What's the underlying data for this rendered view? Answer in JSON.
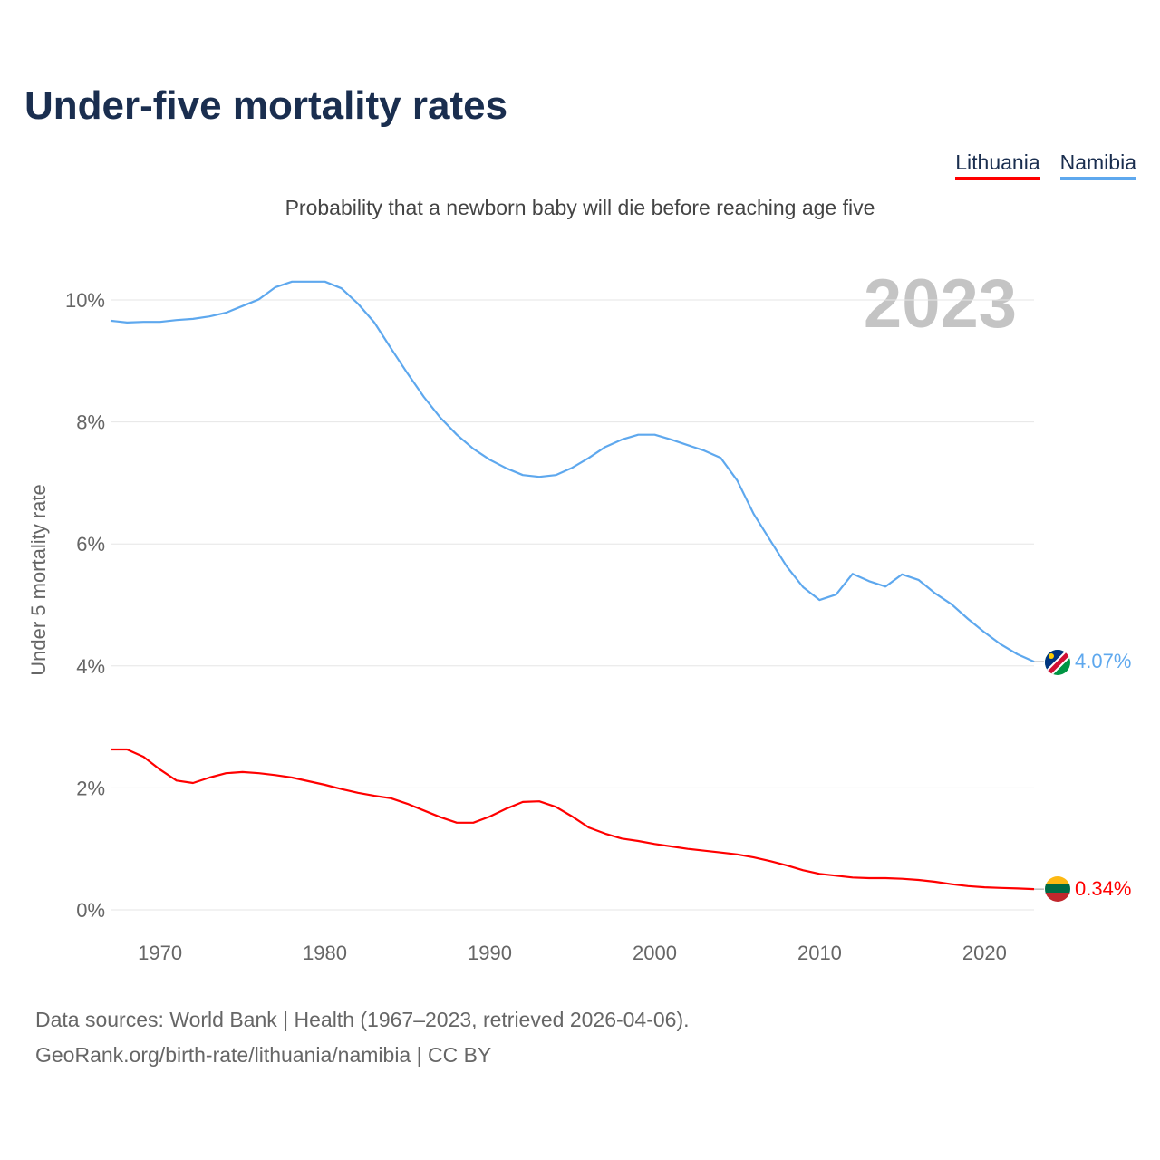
{
  "chart_data": {
    "type": "line",
    "title": "Under-five mortality rates",
    "subtitle": "Probability that a newborn baby will die before reaching age five",
    "ylabel": "Under 5 mortality rate",
    "xlabel": "",
    "year_label": "2023",
    "ylim": [
      0,
      10
    ],
    "xlim": [
      1967,
      2023
    ],
    "yticks": [
      0,
      2,
      4,
      6,
      8,
      10
    ],
    "ytick_labels": [
      "0%",
      "2%",
      "4%",
      "6%",
      "8%",
      "10%"
    ],
    "xticks": [
      1970,
      1980,
      1990,
      2000,
      2010,
      2020
    ],
    "xtick_labels": [
      "1970",
      "1980",
      "1990",
      "2000",
      "2010",
      "2020"
    ],
    "grid": true,
    "legend_position": "top-right",
    "x": [
      1967,
      1968,
      1969,
      1970,
      1971,
      1972,
      1973,
      1974,
      1975,
      1976,
      1977,
      1978,
      1979,
      1980,
      1981,
      1982,
      1983,
      1984,
      1985,
      1986,
      1987,
      1988,
      1989,
      1990,
      1991,
      1992,
      1993,
      1994,
      1995,
      1996,
      1997,
      1998,
      1999,
      2000,
      2001,
      2002,
      2003,
      2004,
      2005,
      2006,
      2007,
      2008,
      2009,
      2010,
      2011,
      2012,
      2013,
      2014,
      2015,
      2016,
      2017,
      2018,
      2019,
      2020,
      2021,
      2022,
      2023
    ],
    "series": [
      {
        "name": "Lithuania",
        "color": "#ff0000",
        "end_label": "0.34%",
        "values": [
          2.63,
          2.63,
          2.51,
          2.3,
          2.12,
          2.08,
          2.17,
          2.24,
          2.26,
          2.24,
          2.21,
          2.17,
          2.11,
          2.05,
          1.98,
          1.92,
          1.87,
          1.83,
          1.74,
          1.63,
          1.52,
          1.43,
          1.43,
          1.53,
          1.66,
          1.77,
          1.78,
          1.69,
          1.53,
          1.35,
          1.25,
          1.17,
          1.13,
          1.08,
          1.04,
          1.0,
          0.97,
          0.94,
          0.91,
          0.86,
          0.8,
          0.73,
          0.65,
          0.59,
          0.56,
          0.53,
          0.52,
          0.52,
          0.51,
          0.49,
          0.46,
          0.42,
          0.39,
          0.37,
          0.36,
          0.35,
          0.34
        ]
      },
      {
        "name": "Namibia",
        "color": "#5ea8ee",
        "end_label": "4.07%",
        "values": [
          9.66,
          9.63,
          9.64,
          9.64,
          9.67,
          9.69,
          9.73,
          9.79,
          9.9,
          10.01,
          10.21,
          10.3,
          10.3,
          10.3,
          10.19,
          9.94,
          9.63,
          9.21,
          8.8,
          8.41,
          8.07,
          7.79,
          7.56,
          7.38,
          7.24,
          7.13,
          7.1,
          7.13,
          7.25,
          7.41,
          7.59,
          7.71,
          7.79,
          7.79,
          7.71,
          7.62,
          7.53,
          7.41,
          7.04,
          6.49,
          6.06,
          5.63,
          5.29,
          5.08,
          5.17,
          5.51,
          5.39,
          5.3,
          5.5,
          5.41,
          5.19,
          5.01,
          4.77,
          4.55,
          4.35,
          4.19,
          4.07
        ]
      }
    ]
  },
  "legend": {
    "items": [
      "Lithuania",
      "Namibia"
    ]
  },
  "footer": {
    "source_line": "Data sources: World Bank | Health (1967–2023, retrieved 2026-04-06).",
    "credit_line": "GeoRank.org/birth-rate/lithuania/namibia | CC BY"
  }
}
